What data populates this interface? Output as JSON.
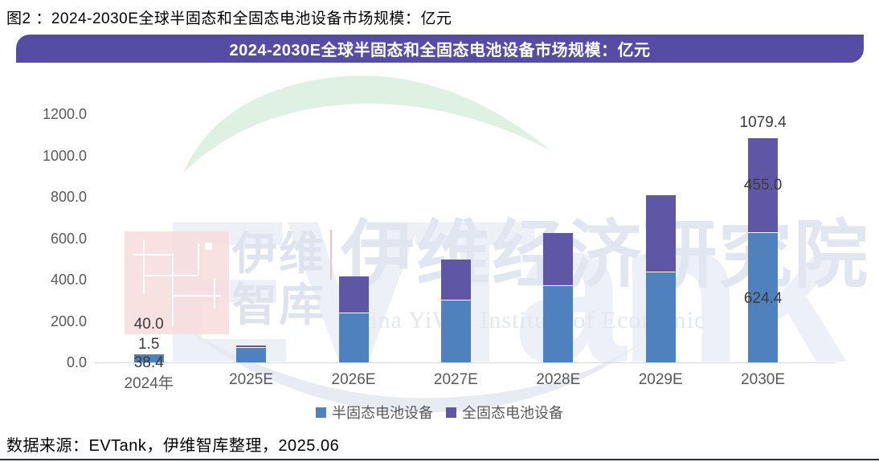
{
  "caption": "图2 ：2024-2030E全球半固态和全固态电池设备市场规模：亿元",
  "banner": {
    "title": "2024-2030E全球半固态和全固态电池设备市场规模：亿元",
    "bg_color": "#564CA3"
  },
  "watermark": {
    "brand_large": "EVTank",
    "stamp_lines": [
      "伊维",
      "智库"
    ],
    "cn_institute": "伊维经济研究院",
    "en_institute": "China YiWei Institute of Economic"
  },
  "chart_data": {
    "type": "bar",
    "stacked": true,
    "title": "2024-2030E全球半固态和全固态电池设备市场规模：亿元",
    "unit": "亿元",
    "categories": [
      "2024年",
      "2025E",
      "2026E",
      "2027E",
      "2028E",
      "2029E",
      "2030E"
    ],
    "series": [
      {
        "name": "半固态电池设备",
        "color": "#4E81BD",
        "values": [
          38.4,
          68,
          237,
          299,
          368,
          436,
          624.4
        ]
      },
      {
        "name": "全固态电池设备",
        "color": "#5F57A6",
        "values": [
          1.5,
          7,
          175,
          195,
          254,
          369,
          455.0
        ]
      }
    ],
    "totals": [
      40.0,
      75,
      412,
      494,
      622,
      805,
      1079.4
    ],
    "data_labels": {
      "0": {
        "series": [
          "38.4",
          "1.5"
        ],
        "total": "40.0"
      },
      "6": {
        "series": [
          "624.4",
          "455.0"
        ],
        "total": "1079.4"
      }
    },
    "ylim": [
      0,
      1200
    ],
    "ytick_step": 200,
    "ytick_format": "one_decimal",
    "gridlines": false,
    "legend_position": "bottom"
  },
  "source": "数据来源：EVTank，伊维智库整理，2025.06",
  "colors": {
    "banner": "#564CA3",
    "bar_semi_solid": "#4E81BD",
    "bar_all_solid": "#5F57A6",
    "axis_line": "#D8D8D8",
    "tick_text": "#595959",
    "watermark_green": "#DFF1E3",
    "watermark_gray": "#E8EBF2",
    "watermark_pink": "#F7DBDB",
    "bottom_rule": "#1F3050"
  }
}
